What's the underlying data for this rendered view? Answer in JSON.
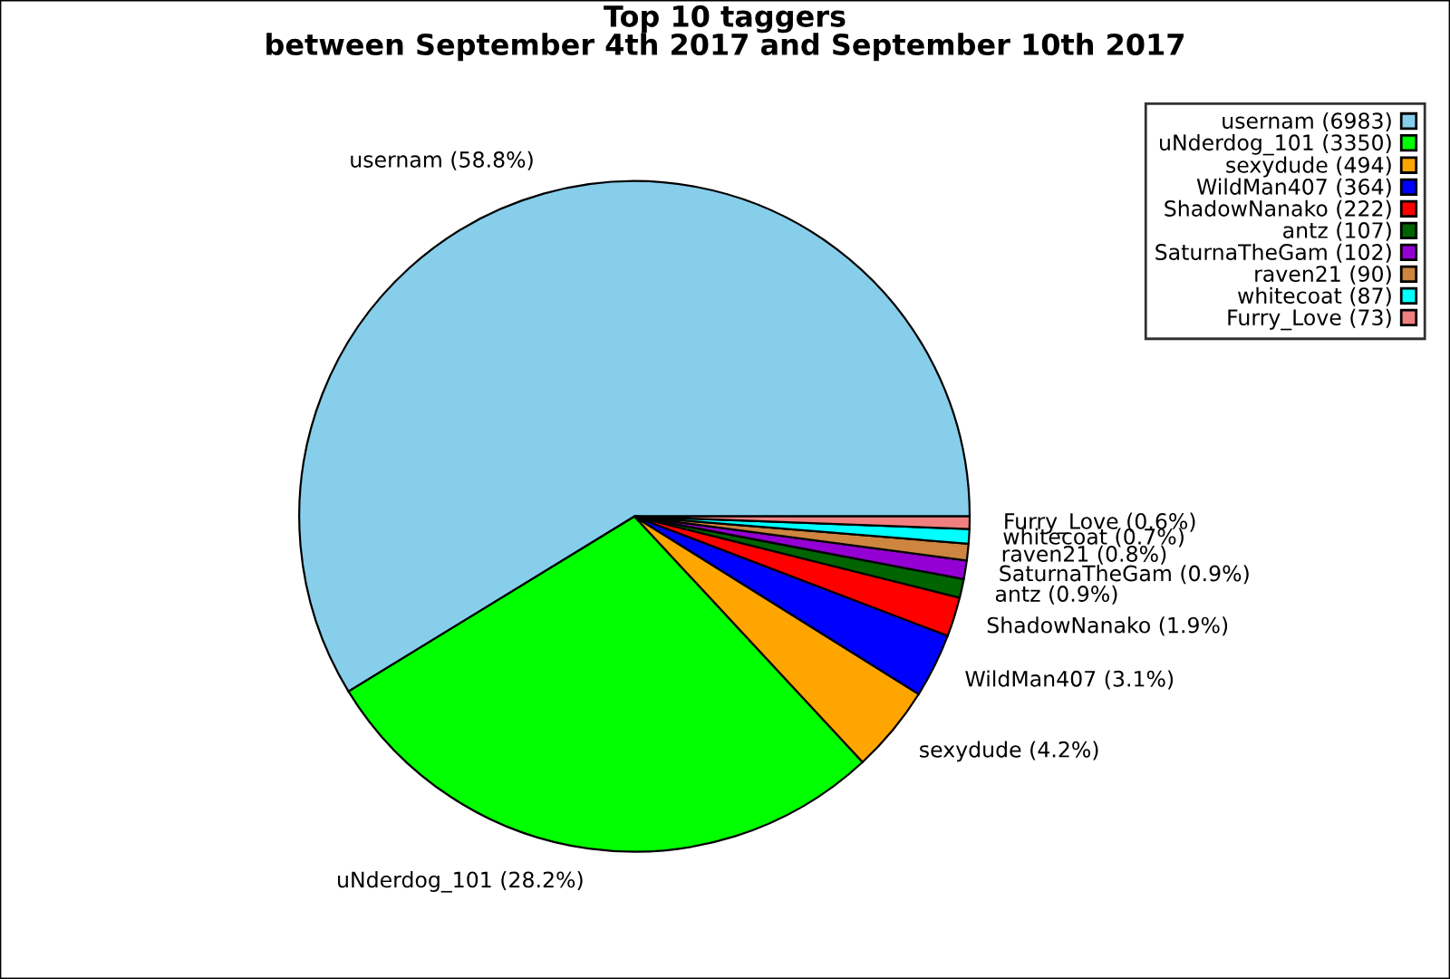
{
  "chart_data": {
    "type": "pie",
    "title": "Top 10 taggers\nbetween September 4th 2017 and September 10th 2017",
    "categories": [
      "usernam (6983)",
      "uNderdog_101 (3350)",
      "sexydude (494)",
      "WildMan407 (364)",
      "ShadowNanako (222)",
      "antz (107)",
      "SaturnaTheGam (102)",
      "raven21 (90)",
      "whitecoat (87)",
      "Furry_Love (73)"
    ],
    "values": [
      58.8,
      28.2,
      4.2,
      3.1,
      1.9,
      0.9,
      0.9,
      0.8,
      0.7,
      0.6
    ],
    "value_labels": [
      "usernam (58.8%)",
      "uNderdog_101 (28.2%)",
      "sexydude (4.2%)",
      "WildMan407 (3.1%)",
      "ShadowNanako (1.9%)",
      "antz (0.9%)",
      "SaturnaTheGam (0.9%)",
      "raven21 (0.8%)",
      "whitecoat (0.7%)",
      "Furry_Love (0.6%)"
    ],
    "colors": [
      "#87ceeb",
      "#00ff00",
      "#ffa500",
      "#0000ff",
      "#ff0000",
      "#006400",
      "#9400d3",
      "#cd853f",
      "#00ffff",
      "#f08080"
    ],
    "legend": "top right"
  }
}
